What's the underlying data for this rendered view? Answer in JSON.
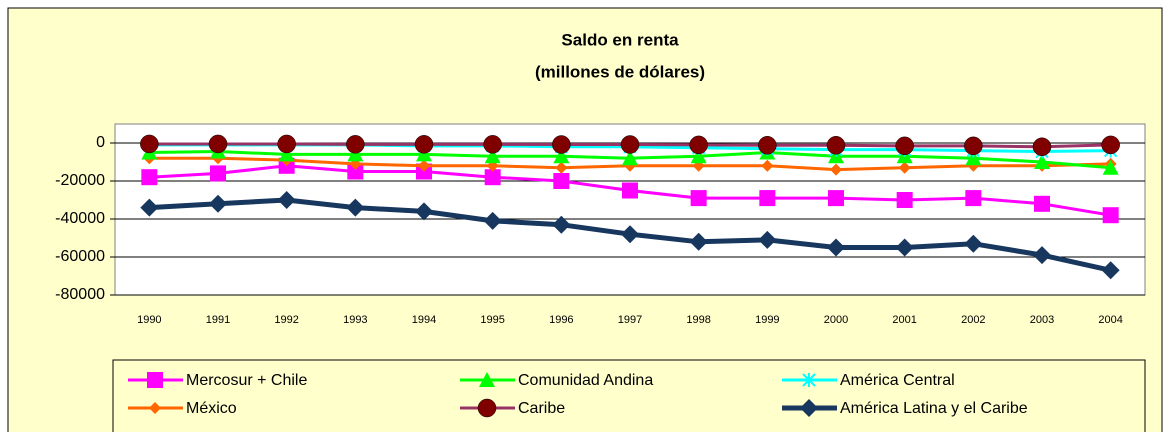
{
  "chart_data": {
    "type": "line",
    "title": "Saldo en renta",
    "subtitle": "(millones de dólares)",
    "categories": [
      "1990",
      "1991",
      "1992",
      "1993",
      "1994",
      "1995",
      "1996",
      "1997",
      "1998",
      "1999",
      "2000",
      "2001",
      "2002",
      "2003",
      "2004"
    ],
    "ylim": [
      -80000,
      10000
    ],
    "yticks": [
      -80000,
      -60000,
      -40000,
      -20000,
      0
    ],
    "grid": true,
    "legend": "bottom",
    "series": [
      {
        "name": "Mercosur + Chile",
        "color": "#ff00ff",
        "marker": "square",
        "values": [
          -18000,
          -16000,
          -12000,
          -15000,
          -15000,
          -18000,
          -20000,
          -25000,
          -29000,
          -29000,
          -29000,
          -30000,
          -29000,
          -32000,
          -38000
        ]
      },
      {
        "name": "Comunidad Andina",
        "color": "#00ff00",
        "marker": "triangle",
        "values": [
          -5000,
          -4500,
          -6000,
          -6000,
          -6000,
          -7000,
          -7000,
          -8000,
          -7000,
          -5000,
          -7000,
          -7000,
          -8000,
          -10000,
          -13000
        ]
      },
      {
        "name": "América Central",
        "color": "#00ffff",
        "marker": "star",
        "values": [
          -1000,
          -1000,
          -1000,
          -1000,
          -1500,
          -1500,
          -2000,
          -2000,
          -2500,
          -3000,
          -3500,
          -3500,
          -4000,
          -4500,
          -4000
        ]
      },
      {
        "name": "México",
        "color": "#ff6600",
        "marker": "diamond-small",
        "values": [
          -8000,
          -8000,
          -9000,
          -11000,
          -12000,
          -12000,
          -13000,
          -12000,
          -12000,
          -12000,
          -14000,
          -13000,
          -12000,
          -12000,
          -11000
        ]
      },
      {
        "name": "Caribe",
        "color": "#993366",
        "marker": "circle",
        "values": [
          -500,
          -500,
          -500,
          -700,
          -700,
          -700,
          -800,
          -800,
          -1000,
          -1200,
          -1200,
          -1500,
          -1500,
          -2000,
          -1000
        ]
      },
      {
        "name": "América Latina y el Caribe",
        "color": "#17375e",
        "marker": "diamond",
        "values": [
          -34000,
          -32000,
          -30000,
          -34000,
          -36000,
          -41000,
          -43000,
          -48000,
          -52000,
          -51000,
          -55000,
          -55000,
          -53000,
          -59000,
          -67000
        ]
      }
    ]
  }
}
